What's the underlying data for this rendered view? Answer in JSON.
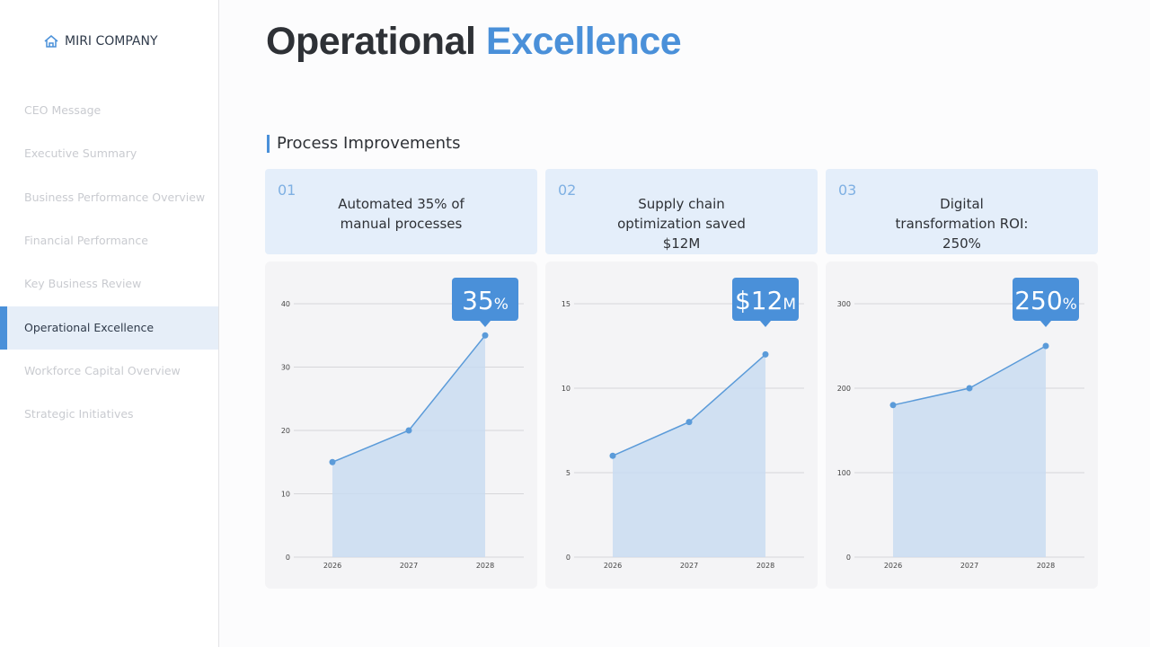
{
  "sidebar": {
    "logo": "MIRI COMPANY",
    "nav": [
      "CEO Message",
      "Executive Summary",
      "Business Performance Overview",
      "Financial Performance",
      "Key Business Review",
      "Operational Excellence",
      "Workforce Capital Overview",
      "Strategic Initiatives"
    ],
    "active_index": 5
  },
  "header": {
    "title_dark": "Operational",
    "title_accent": "Excellence"
  },
  "section": {
    "title": "Process Improvements"
  },
  "cards": [
    {
      "number": "01",
      "text": "Automated 35% of manual processes"
    },
    {
      "number": "02",
      "text": "Supply chain optimization saved $12M"
    },
    {
      "number": "03",
      "text": "Digital transformation ROI: 250%"
    }
  ],
  "chart_data": [
    {
      "type": "line",
      "categories": [
        "2026",
        "2027",
        "2028"
      ],
      "values": [
        15,
        20,
        35
      ],
      "color": "#5b9bd9",
      "ylim": [
        0,
        40
      ],
      "yticks": [
        0,
        10,
        20,
        30,
        40
      ],
      "grid": true,
      "callout": {
        "main": "35",
        "unit": "%"
      }
    },
    {
      "type": "line",
      "categories": [
        "2026",
        "2027",
        "2028"
      ],
      "values": [
        6,
        8,
        12
      ],
      "color": "#5b9bd9",
      "ylim": [
        0,
        15
      ],
      "yticks": [
        0,
        5,
        10,
        15
      ],
      "grid": true,
      "callout": {
        "main": "$12",
        "unit": "M"
      }
    },
    {
      "type": "line",
      "categories": [
        "2026",
        "2027",
        "2028"
      ],
      "values": [
        180,
        200,
        250
      ],
      "color": "#5b9bd9",
      "ylim": [
        0,
        300
      ],
      "yticks": [
        0,
        100,
        200,
        300
      ],
      "grid": true,
      "callout": {
        "main": "250",
        "unit": "%"
      }
    }
  ]
}
